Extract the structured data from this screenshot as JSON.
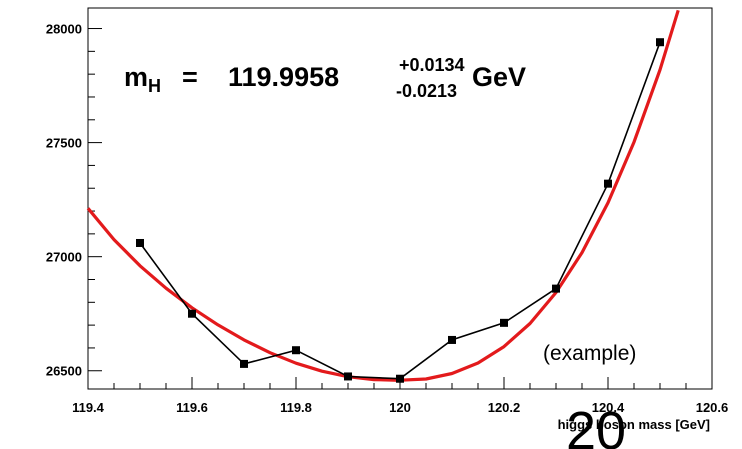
{
  "chart_data": {
    "type": "scatter",
    "xlabel": "higgs boson mass [GeV]",
    "ylabel": "",
    "xlim": [
      119.4,
      120.6
    ],
    "ylim": [
      26420,
      28090
    ],
    "x_ticks": [
      "119.4",
      "119.6",
      "119.8",
      "120",
      "120.2",
      "120.4",
      "120.6"
    ],
    "y_ticks": [
      "26500",
      "27000",
      "27500",
      "28000"
    ],
    "grid": false,
    "series": [
      {
        "color": "#000000",
        "marker": "square",
        "style": "line+markers",
        "x": [
          119.5,
          119.6,
          119.7,
          119.8,
          119.9,
          120.0,
          120.1,
          120.2,
          120.3,
          120.4,
          120.5
        ],
        "y": [
          27060,
          26750,
          26530,
          26590,
          26475,
          26465,
          26635,
          26710,
          26860,
          27320,
          27940
        ]
      },
      {
        "color": "#e31a1c",
        "style": "fit-curve",
        "x": [
          119.4,
          119.45,
          119.5,
          119.55,
          119.6,
          119.65,
          119.7,
          119.75,
          119.8,
          119.85,
          119.9,
          119.95,
          119.9958,
          120.05,
          120.1,
          120.15,
          120.2,
          120.25,
          120.3,
          120.35,
          120.4,
          120.45,
          120.5,
          120.535
        ],
        "y": [
          27212,
          27075,
          26960,
          26862,
          26776,
          26701,
          26635,
          26579,
          26533,
          26498,
          26474,
          26461,
          26458,
          26464,
          26488,
          26534,
          26606,
          26707,
          26843,
          27018,
          27236,
          27502,
          27819,
          28080
        ]
      }
    ],
    "annotations": {
      "mass_label_main": "m",
      "mass_label_sub": "H",
      "mass_equals": "=",
      "mass_value": "119.9958",
      "mass_err_up": "+0.0134",
      "mass_err_down": "-0.0213",
      "mass_unit": "GeV",
      "example": "(example)"
    }
  },
  "page_number": "20"
}
